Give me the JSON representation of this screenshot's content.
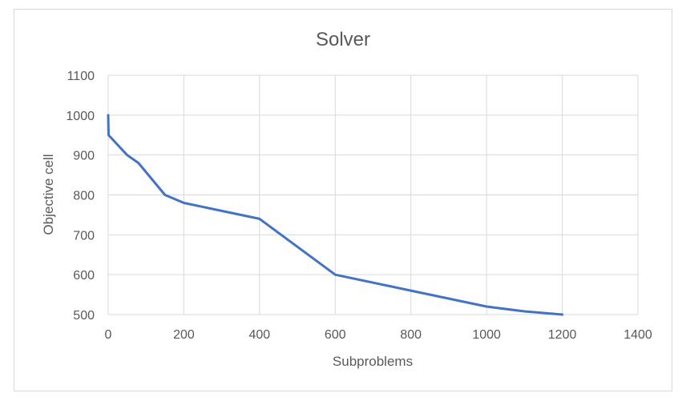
{
  "chart_data": {
    "type": "line",
    "title": "Solver",
    "xlabel": "Subproblems",
    "ylabel": "Objective cell",
    "xlim": [
      0,
      1400
    ],
    "ylim": [
      500,
      1100
    ],
    "xticks": [
      0,
      200,
      400,
      600,
      800,
      1000,
      1200,
      1400
    ],
    "yticks": [
      500,
      600,
      700,
      800,
      900,
      1000,
      1100
    ],
    "grid": true,
    "legend": "none",
    "series": [
      {
        "color": "#4472c4",
        "points": [
          [
            0,
            1000
          ],
          [
            1,
            950
          ],
          [
            50,
            900
          ],
          [
            80,
            880
          ],
          [
            150,
            800
          ],
          [
            200,
            780
          ],
          [
            400,
            740
          ],
          [
            600,
            600
          ],
          [
            800,
            560
          ],
          [
            1000,
            520
          ],
          [
            1100,
            508
          ],
          [
            1200,
            500
          ]
        ]
      }
    ]
  }
}
